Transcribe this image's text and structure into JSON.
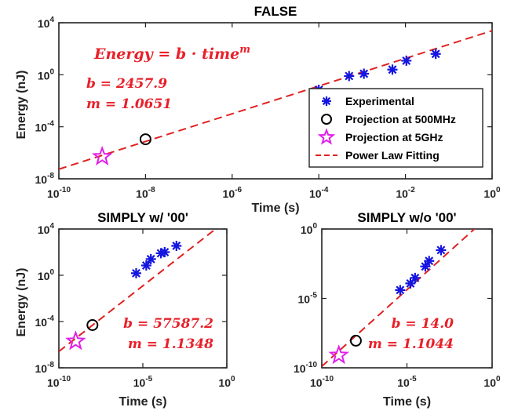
{
  "chart_data": [
    {
      "type": "scatter",
      "title": "FALSE",
      "xlabel": "Time (s)",
      "ylabel": "Energy (nJ)",
      "xscale": "log",
      "yscale": "log",
      "xlim": [
        1e-10,
        1
      ],
      "ylim": [
        1e-08,
        10000.0
      ],
      "xticks": [
        1e-10,
        1e-08,
        1e-06,
        0.0001,
        0.01,
        1
      ],
      "xtick_labels": [
        [
          "10",
          "-10"
        ],
        [
          "10",
          "-8"
        ],
        [
          "10",
          "-6"
        ],
        [
          "10",
          "-4"
        ],
        [
          "10",
          "-2"
        ],
        [
          "10",
          "0"
        ]
      ],
      "yticks": [
        1e-08,
        0.0001,
        1,
        10000.0
      ],
      "ytick_labels": [
        [
          "10",
          "-8"
        ],
        [
          "10",
          "-4"
        ],
        [
          "10",
          "0"
        ],
        [
          "10",
          "4"
        ]
      ],
      "grid": false,
      "equation": "Energy = b · time^m",
      "equation_parts": {
        "lhs": "Energy = b · time",
        "exp": "m"
      },
      "annotations": [
        "b = 2457.9",
        "m = 1.0651"
      ],
      "fit": {
        "b": 2457.9,
        "m": 1.0651
      },
      "legend": {
        "placement": "bottom-right",
        "entries": [
          "Experimental",
          "Projection at 500MHz",
          "Projection at 5GHz",
          "Power Law Fitting"
        ]
      },
      "series": [
        {
          "name": "Experimental",
          "x": [
            0.0001,
            0.0005,
            0.0011,
            0.005,
            0.0105,
            0.05
          ],
          "y": [
            0.07,
            0.8,
            1.2,
            2.5,
            12.0,
            40.0
          ]
        },
        {
          "name": "Projection at 500MHz",
          "x": [
            1e-08
          ],
          "y": [
            1.1e-05
          ]
        },
        {
          "name": "Projection at 5GHz",
          "x": [
            1e-09
          ],
          "y": [
            5e-07
          ]
        }
      ]
    },
    {
      "type": "scatter",
      "title": "SIMPLY w/ '00'",
      "xlabel": "Time (s)",
      "ylabel": "Energy (nJ)",
      "xscale": "log",
      "yscale": "log",
      "xlim": [
        1e-10,
        1
      ],
      "ylim": [
        1e-08,
        10000.0
      ],
      "xticks": [
        1e-10,
        1e-05,
        1
      ],
      "xtick_labels": [
        [
          "10",
          "-10"
        ],
        [
          "10",
          "-5"
        ],
        [
          "10",
          "0"
        ]
      ],
      "yticks": [
        1e-08,
        0.0001,
        1,
        10000.0
      ],
      "ytick_labels": [
        [
          "10",
          "-8"
        ],
        [
          "10",
          "-4"
        ],
        [
          "10",
          "0"
        ],
        [
          "10",
          "4"
        ]
      ],
      "grid": false,
      "annotations": [
        "b = 57587.2",
        "m = 1.1348"
      ],
      "fit": {
        "b": 57587.2,
        "m": 1.1348
      },
      "series": [
        {
          "name": "Experimental",
          "x": [
            4e-06,
            1.6e-05,
            3e-05,
            0.00012,
            0.0002,
            0.001
          ],
          "y": [
            1.5,
            7.0,
            25.0,
            80.0,
            100.0,
            350.0
          ]
        },
        {
          "name": "Projection at 500MHz",
          "x": [
            1e-08
          ],
          "y": [
            5e-05
          ]
        },
        {
          "name": "Projection at 5GHz",
          "x": [
            1e-09
          ],
          "y": [
            2e-06
          ]
        }
      ]
    },
    {
      "type": "scatter",
      "title": "SIMPLY w/o '00'",
      "xlabel": "Time (s)",
      "ylabel": "",
      "xscale": "log",
      "yscale": "log",
      "xlim": [
        1e-10,
        1
      ],
      "ylim": [
        1e-10,
        1
      ],
      "xticks": [
        1e-10,
        1e-05,
        1
      ],
      "xtick_labels": [
        [
          "10",
          "-10"
        ],
        [
          "10",
          "-5"
        ],
        [
          "10",
          "0"
        ]
      ],
      "yticks": [
        1e-10,
        1e-05,
        1
      ],
      "ytick_labels": [
        [
          "10",
          "-10"
        ],
        [
          "10",
          "-5"
        ],
        [
          "10",
          "0"
        ]
      ],
      "grid": false,
      "annotations": [
        "b = 14.0",
        "m = 1.1044"
      ],
      "fit": {
        "b": 14.0,
        "m": 1.1044
      },
      "series": [
        {
          "name": "Experimental",
          "x": [
            4e-06,
            1.6e-05,
            3e-05,
            0.00012,
            0.0002,
            0.001
          ],
          "y": [
            4e-05,
            0.00012,
            0.0003,
            0.002,
            0.005,
            0.03
          ]
        },
        {
          "name": "Projection at 500MHz",
          "x": [
            1e-08
          ],
          "y": [
            9e-09
          ]
        },
        {
          "name": "Projection at 5GHz",
          "x": [
            1e-09
          ],
          "y": [
            8e-10
          ]
        }
      ]
    }
  ],
  "colors": {
    "experimental": "#1515e0",
    "projection_500mhz": "#000000",
    "projection_5ghz": "#e020e8",
    "fit_line": "#e02020",
    "annotation_text": "#e8202a"
  }
}
